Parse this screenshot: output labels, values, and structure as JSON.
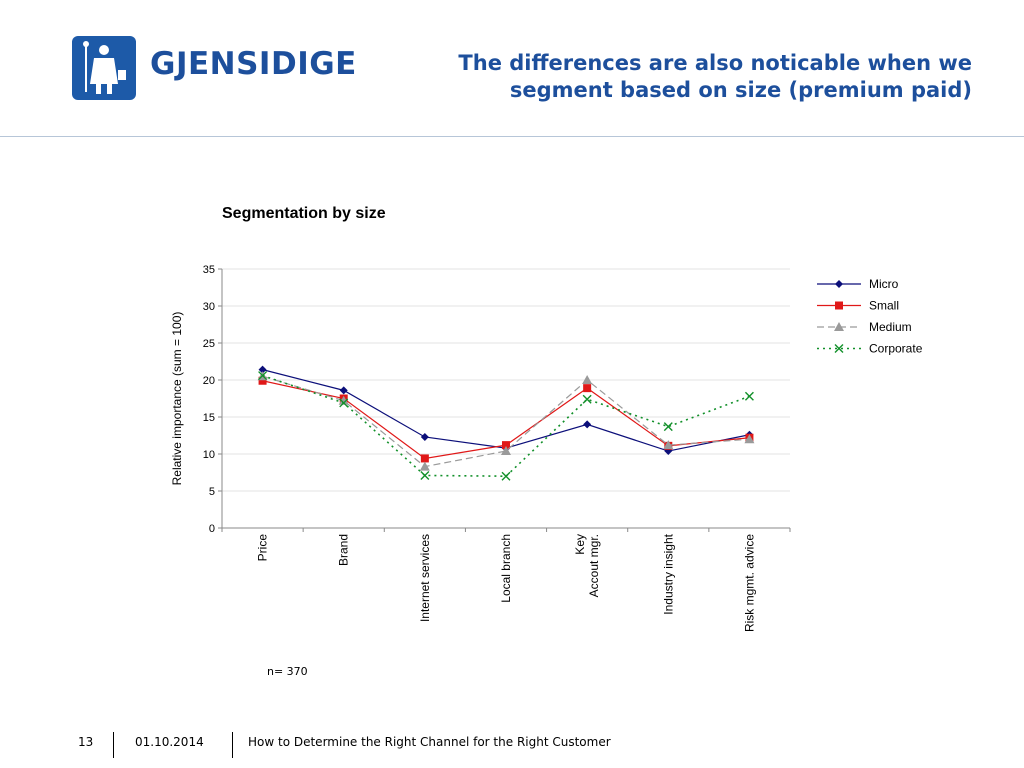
{
  "header": {
    "brand": "GJENSIDIGE",
    "title_line1": "The differences are also noticable when we",
    "title_line2": "segment based on size (premium paid)"
  },
  "chart_data": {
    "type": "line",
    "title": "Segmentation by size",
    "ylabel": "Relative importance (sum = 100)",
    "xlabel": "",
    "ylim": [
      0,
      35
    ],
    "yticks": [
      0,
      5,
      10,
      15,
      20,
      25,
      30,
      35
    ],
    "grid": true,
    "legend_position": "right",
    "categories": [
      "Price",
      "Brand",
      "Internet services",
      "Local branch",
      "Key\nAccout mgr.",
      "Industry insight",
      "Risk mgmt. advice"
    ],
    "series": [
      {
        "name": "Micro",
        "values": [
          21.4,
          18.6,
          12.3,
          10.8,
          14.0,
          10.4,
          12.6
        ],
        "color": "#0c0f7a",
        "marker": "diamond",
        "dash": "solid"
      },
      {
        "name": "Small",
        "values": [
          19.9,
          17.5,
          9.4,
          11.2,
          18.9,
          11.1,
          12.2
        ],
        "color": "#e01818",
        "marker": "square",
        "dash": "solid"
      },
      {
        "name": "Medium",
        "values": [
          20.5,
          17.2,
          8.3,
          10.4,
          20.0,
          11.2,
          12.0
        ],
        "color": "#9a9a9a",
        "marker": "triangle",
        "dash": "dashed"
      },
      {
        "name": "Corporate",
        "values": [
          20.6,
          16.9,
          7.1,
          7.0,
          17.4,
          13.7,
          17.8
        ],
        "color": "#12902a",
        "marker": "x",
        "dash": "dotted"
      }
    ]
  },
  "note": "n= 370",
  "footer": {
    "page": "13",
    "date": "01.10.2014",
    "text": "How to Determine the Right Channel for the Right Customer"
  }
}
